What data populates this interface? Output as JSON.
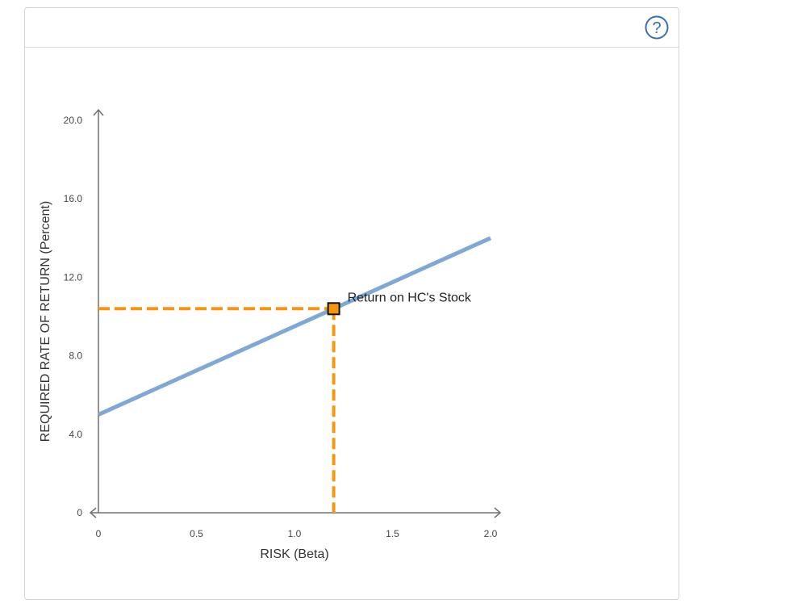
{
  "colors": {
    "sml_line": "#7fa9d4",
    "guide": "#f7960d",
    "axis": "#707070",
    "help": "#3c6eb4"
  },
  "icons": {
    "help": "question-mark-circle-icon"
  },
  "help_glyph": "?",
  "chart_data": {
    "type": "line",
    "xlabel": "RISK (Beta)",
    "ylabel": "REQUIRED RATE OF RETURN (Percent)",
    "xlim": [
      0,
      2.0
    ],
    "ylim": [
      0,
      20.0
    ],
    "x_ticks": [
      "0",
      "0.5",
      "1.0",
      "1.5",
      "2.0"
    ],
    "y_ticks": [
      "0",
      "4.0",
      "8.0",
      "12.0",
      "16.0",
      "20.0"
    ],
    "grid": false,
    "series": [
      {
        "x": [
          0,
          2.0
        ],
        "y": [
          5.0,
          14.0
        ]
      }
    ],
    "point": {
      "x": 1.2,
      "y": 10.4,
      "label": "Return on HC's Stock"
    }
  }
}
